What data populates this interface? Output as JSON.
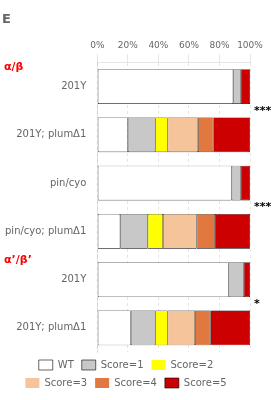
{
  "chart_data": {
    "type": "bar",
    "orientation": "horizontal",
    "stacked": true,
    "title": "E",
    "categories": [
      "201Y",
      "201Y; plumΔ1",
      "pin/cyo",
      "pin/cyo; plumΔ1",
      "201Y",
      "201Y; plumΔ1"
    ],
    "series": [
      {
        "name": "WT",
        "color": "#ffffff",
        "values": [
          89,
          20,
          88,
          15,
          86,
          22
        ]
      },
      {
        "name": "Score=1",
        "color": "#c8c8c8",
        "values": [
          5,
          18,
          6,
          18,
          10,
          16
        ]
      },
      {
        "name": "Score=2",
        "color": "#ffff00",
        "values": [
          0,
          8,
          0,
          10,
          0,
          8
        ]
      },
      {
        "name": "Score=3",
        "color": "#f5c49a",
        "values": [
          0,
          20,
          0,
          22,
          0,
          18
        ]
      },
      {
        "name": "Score=4",
        "color": "#e07840",
        "values": [
          0,
          10,
          0,
          12,
          0,
          10
        ]
      },
      {
        "name": "Score=5",
        "color": "#cc0000",
        "values": [
          6,
          24,
          6,
          23,
          4,
          26
        ]
      }
    ],
    "xlim": [
      0,
      100
    ],
    "xticks": [
      {
        "value": 0,
        "label": "0%"
      },
      {
        "value": 20,
        "label": "20%"
      },
      {
        "value": 40,
        "label": "40%"
      },
      {
        "value": 60,
        "label": "60%"
      },
      {
        "value": 80,
        "label": "80%"
      },
      {
        "value": 100,
        "label": "100%"
      }
    ],
    "grid": true,
    "legend": "bottom",
    "sections": [
      {
        "text": "α/β",
        "rows": [
          0,
          1,
          2,
          3
        ],
        "color": "red"
      },
      {
        "text": "α’/β’",
        "rows": [
          4,
          5
        ],
        "color": "red"
      }
    ],
    "significance": [
      {
        "text": "***",
        "rows": [
          0,
          1
        ]
      },
      {
        "text": "***",
        "rows": [
          2,
          3
        ]
      },
      {
        "text": "*",
        "rows": [
          4,
          5
        ]
      }
    ]
  }
}
